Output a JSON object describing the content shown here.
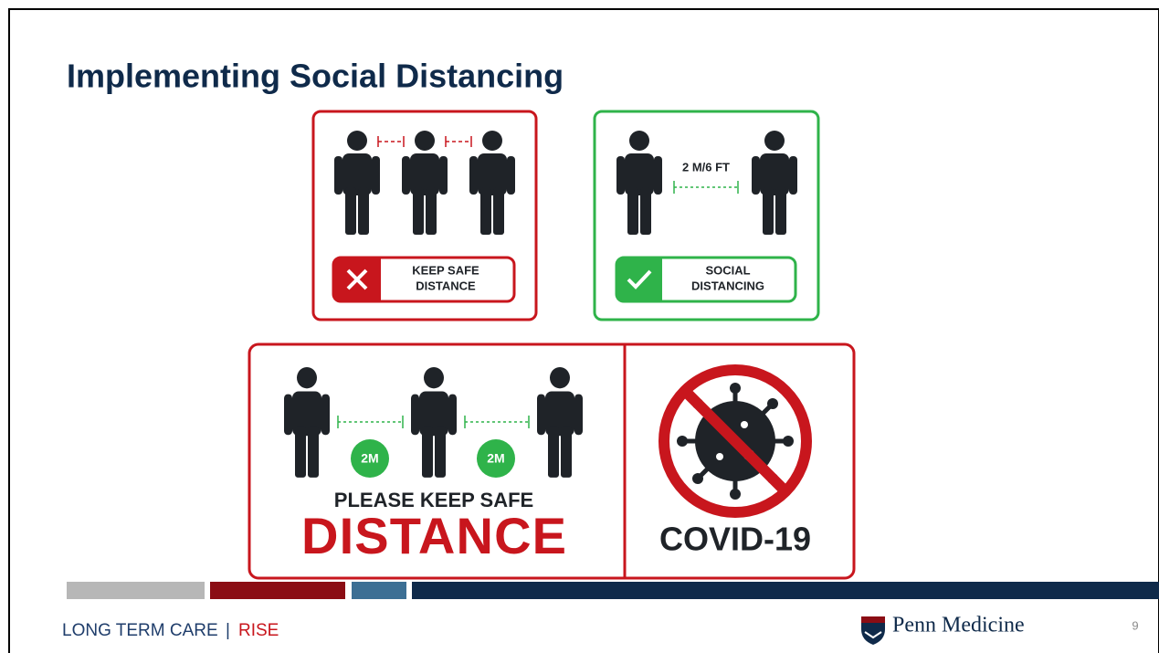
{
  "header": {
    "title": "Implementing Social Distancing"
  },
  "signs": {
    "keep_safe": {
      "label_lines": [
        "KEEP SAFE",
        "DISTANCE"
      ]
    },
    "social": {
      "distance": "2 M/6 FT",
      "label_lines": [
        "SOCIAL",
        "DISTANCING"
      ]
    },
    "please": {
      "badges": [
        "2M",
        "2M"
      ],
      "line1": "PLEASE KEEP SAFE",
      "line2": "DISTANCE"
    },
    "covid": {
      "label": "COVID-19"
    }
  },
  "footer": {
    "program": "LONG TERM CARE",
    "separator": "|",
    "brand": "RISE",
    "org": "Penn Medicine",
    "page_number": "9"
  }
}
